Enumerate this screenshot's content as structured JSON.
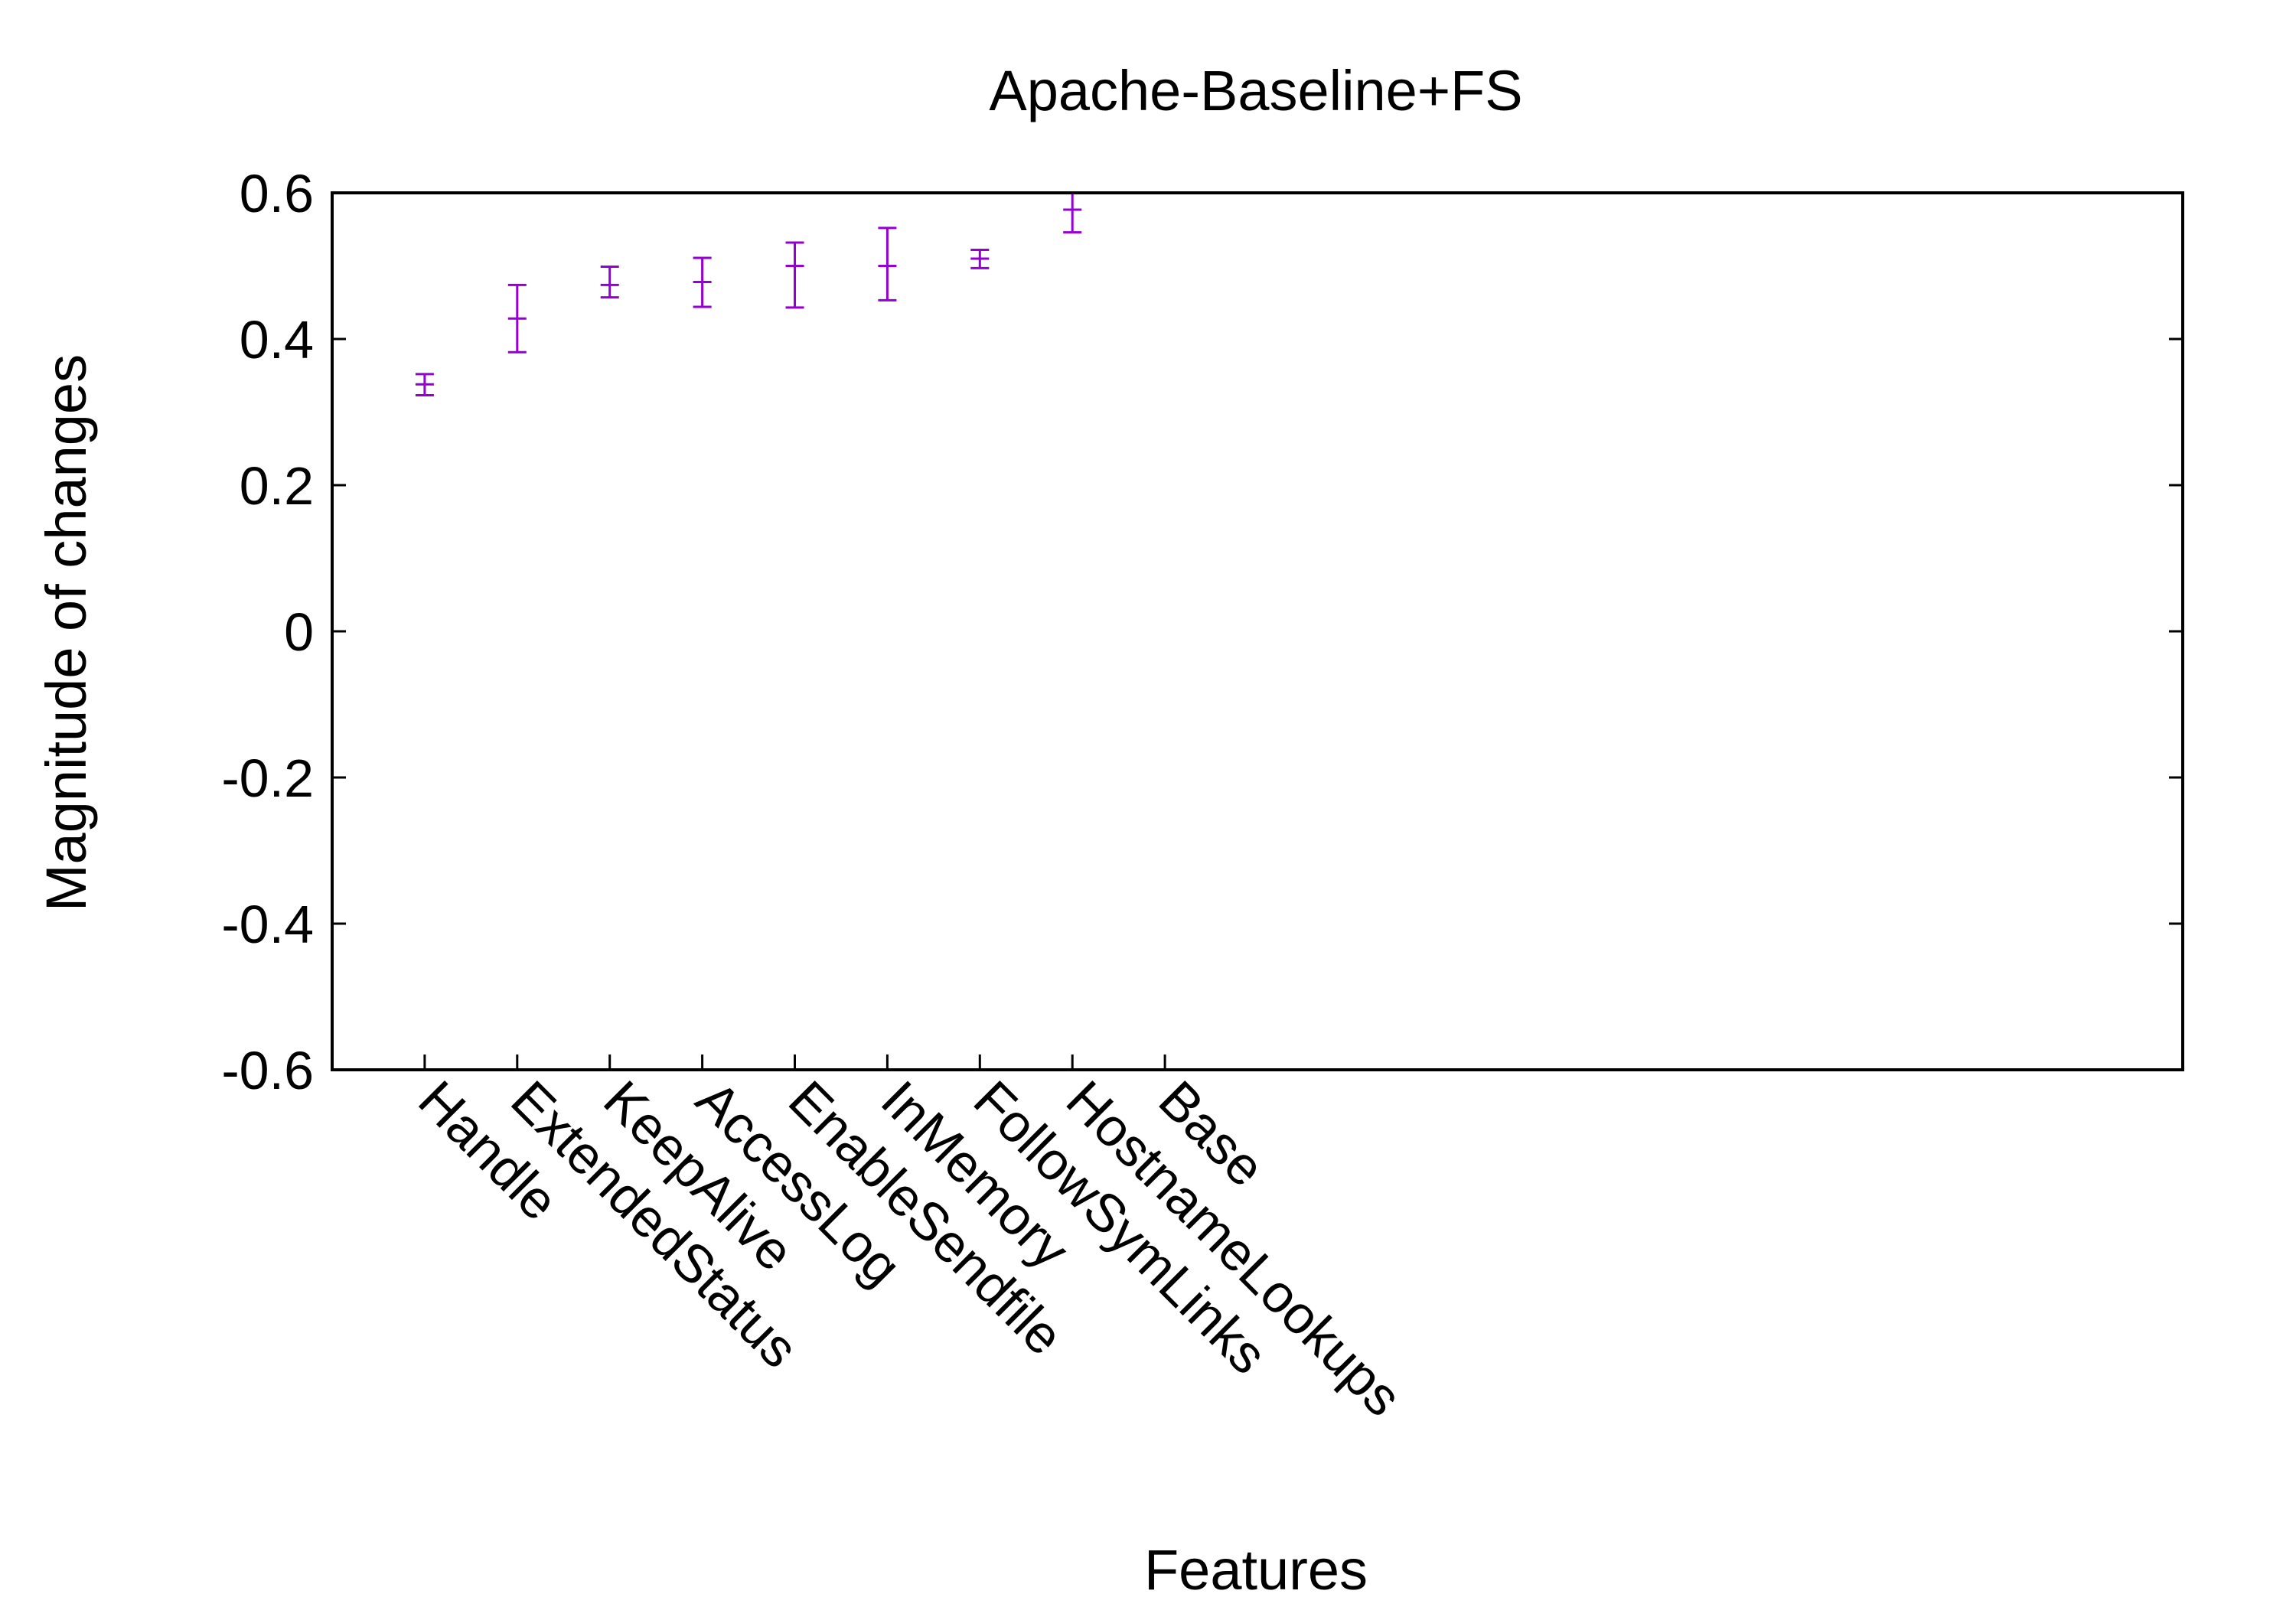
{
  "chart_data": {
    "type": "errorbar",
    "title": "Apache-Baseline+FS",
    "xlabel": "Features",
    "ylabel": "Magnitude of changes",
    "ylim": [
      -0.6,
      0.6
    ],
    "yticks": [
      "0.6",
      "0.4",
      "0.2",
      "0",
      "-0.2",
      "-0.4",
      "-0.6"
    ],
    "ytick_values": [
      0.6,
      0.4,
      0.2,
      0,
      -0.2,
      -0.4,
      -0.6
    ],
    "categories": [
      "Handle",
      "ExtendedStatus",
      "KeepAlive",
      "AccessLog",
      "EnableSendfile",
      "InMemory",
      "FollowSymLinks",
      "HostnameLookups",
      "Base"
    ],
    "x_slots": 20,
    "series": [
      {
        "color": "#9400d3",
        "points": [
          {
            "category": "Handle",
            "mean": 0.338,
            "low": 0.323,
            "high": 0.352
          },
          {
            "category": "ExtendedStatus",
            "mean": 0.428,
            "low": 0.382,
            "high": 0.474
          },
          {
            "category": "KeepAlive",
            "mean": 0.474,
            "low": 0.457,
            "high": 0.499
          },
          {
            "category": "AccessLog",
            "mean": 0.478,
            "low": 0.444,
            "high": 0.511
          },
          {
            "category": "EnableSendfile",
            "mean": 0.5,
            "low": 0.443,
            "high": 0.532
          },
          {
            "category": "InMemory",
            "mean": 0.5,
            "low": 0.453,
            "high": 0.552
          },
          {
            "category": "FollowSymLinks",
            "mean": 0.51,
            "low": 0.497,
            "high": 0.522
          },
          {
            "category": "HostnameLookups",
            "mean": 0.577,
            "low": 0.546,
            "high": 0.6
          }
        ]
      }
    ],
    "grid": false,
    "legend": "none"
  }
}
